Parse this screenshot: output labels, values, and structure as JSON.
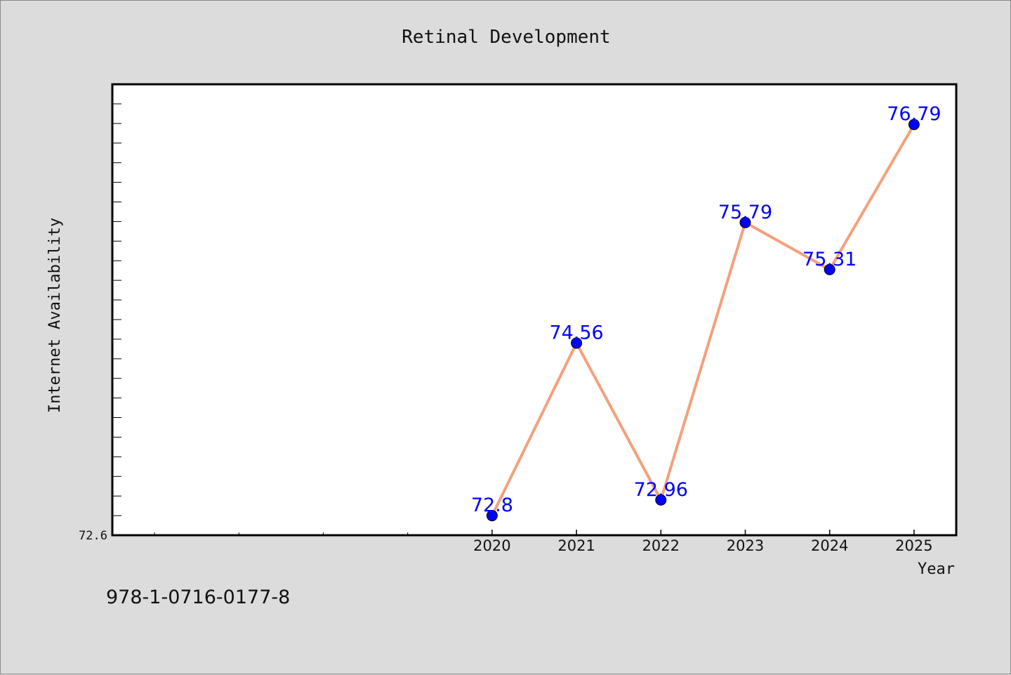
{
  "chart_data": {
    "type": "line",
    "title": "Retinal Development",
    "xlabel": "Year",
    "ylabel": "Internet Availability",
    "x": [
      2020,
      2021,
      2022,
      2023,
      2024,
      2025
    ],
    "values": [
      72.8,
      74.56,
      72.96,
      75.79,
      75.31,
      76.79
    ],
    "data_labels": [
      "72.8",
      "74.56",
      "72.96",
      "75.79",
      "75.31",
      "76.79"
    ],
    "y_tick_labels": [
      "72.6"
    ],
    "xlim": [
      2015.5,
      2025.5
    ],
    "ylim": [
      72.6,
      77.2
    ],
    "grid": false,
    "line_color": "#f4a07c",
    "marker_color": "#0000ff",
    "label_color": "#0000ff"
  },
  "footer": {
    "isbn": "978-1-0716-0177-8"
  }
}
